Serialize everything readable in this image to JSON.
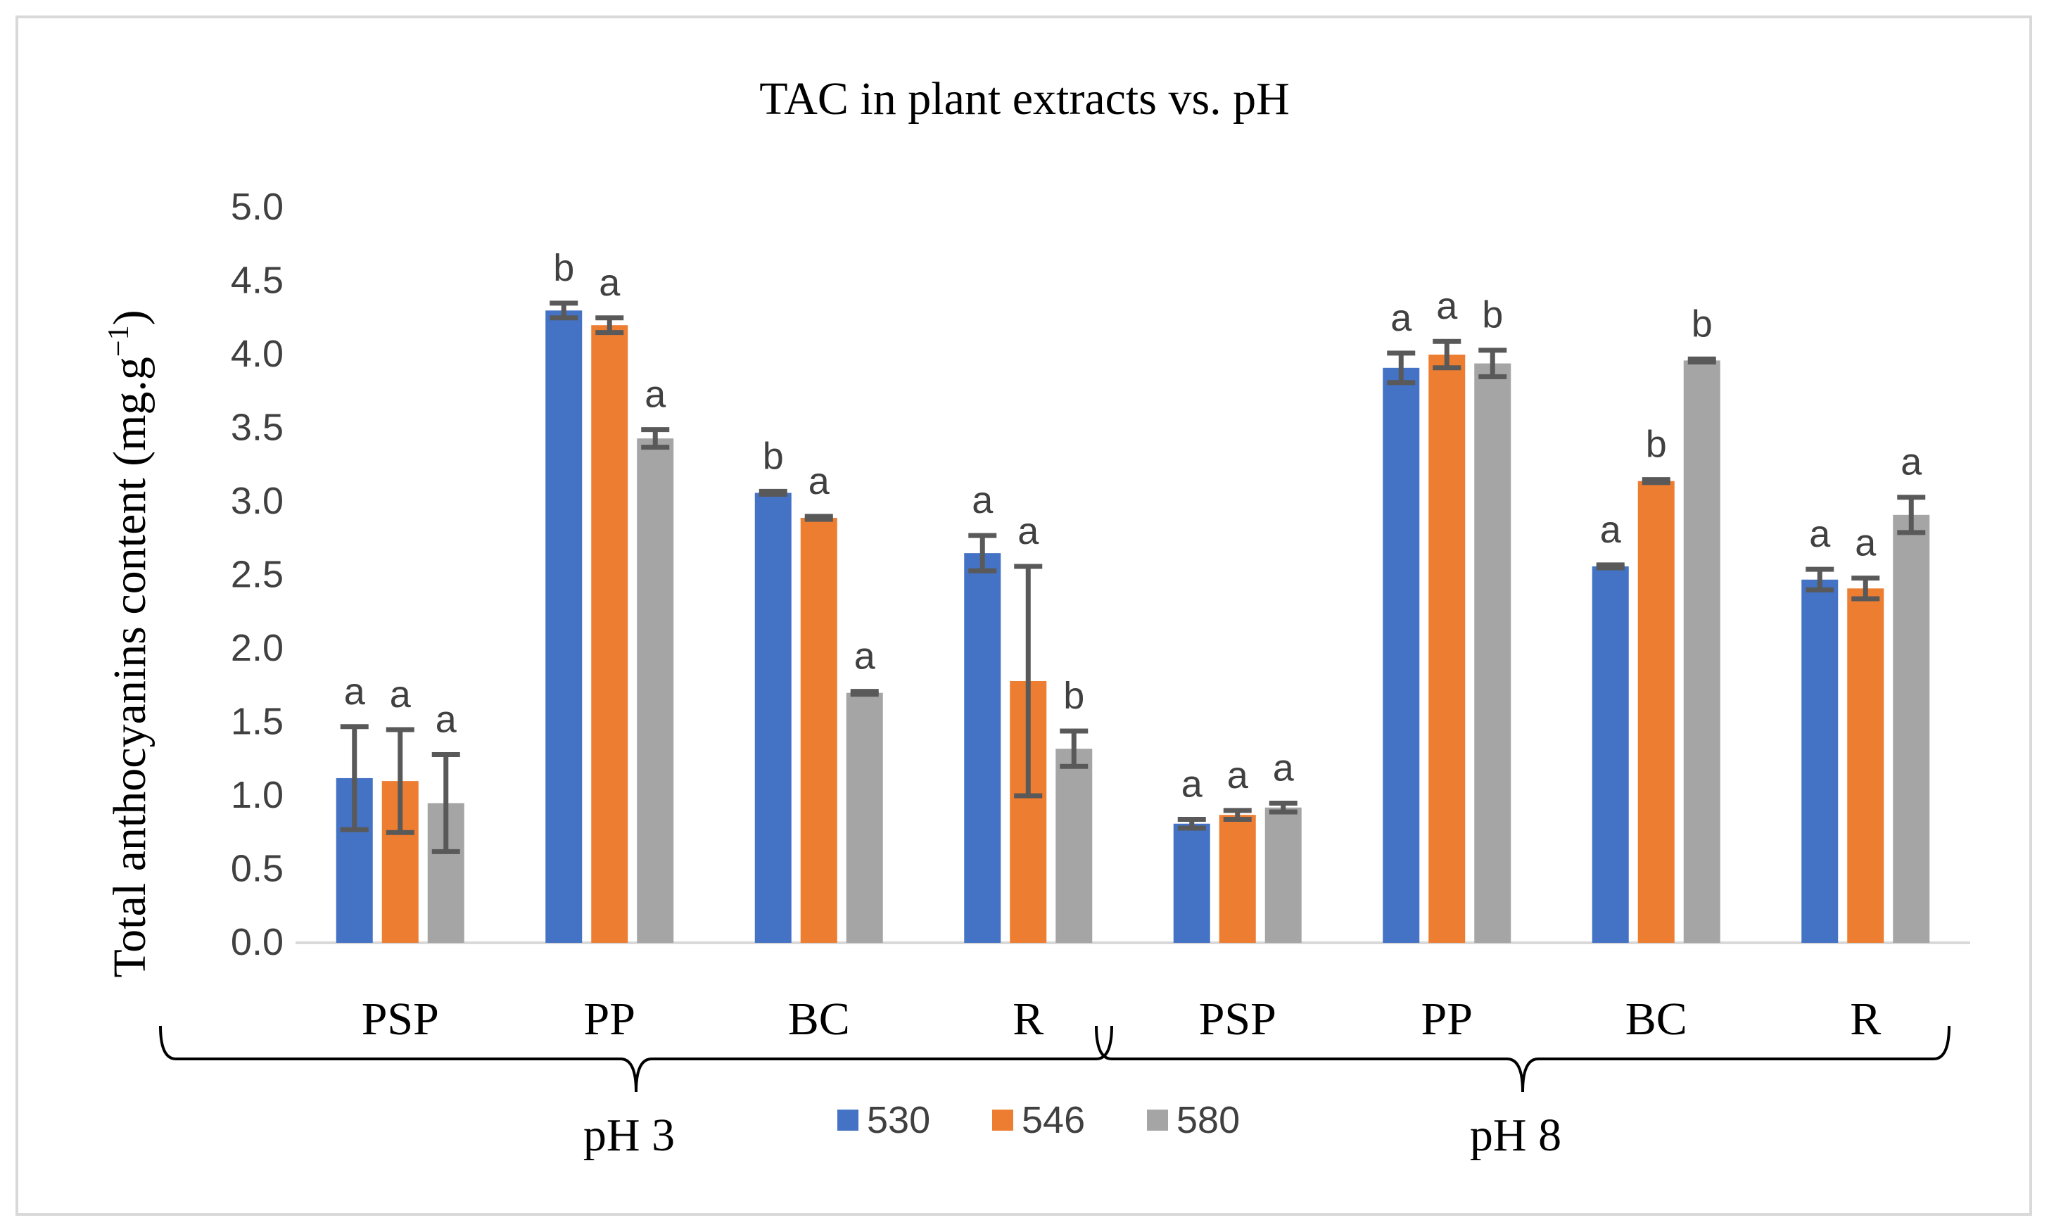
{
  "chart_data": {
    "type": "bar",
    "title": "TAC in plant extracts vs. pH",
    "ylabel": "Total anthocyanins content (mg.g",
    "ylabel_sup": "−1",
    "ylabel_close": ")",
    "ylim": [
      0,
      5
    ],
    "yticks": [
      "0.0",
      "0.5",
      "1.0",
      "1.5",
      "2.0",
      "2.5",
      "3.0",
      "3.5",
      "4.0",
      "4.5",
      "5.0"
    ],
    "categories": [
      "PSP",
      "PP",
      "BC",
      "R",
      "PSP",
      "PP",
      "BC",
      "R"
    ],
    "groups": [
      {
        "label": "pH 3",
        "start": 0,
        "end": 3
      },
      {
        "label": "pH 8",
        "start": 4,
        "end": 7
      }
    ],
    "series": [
      {
        "name": "530",
        "color": "#4472c4",
        "values": [
          1.12,
          4.3,
          3.06,
          2.65,
          0.81,
          3.91,
          2.56,
          2.47
        ],
        "errors": [
          0.35,
          0.05,
          0.01,
          0.12,
          0.03,
          0.1,
          0.01,
          0.07
        ],
        "letters": [
          "a",
          "b",
          "b",
          "a",
          "a",
          "a",
          "a",
          "a"
        ]
      },
      {
        "name": "546",
        "color": "#ed7d31",
        "values": [
          1.1,
          4.2,
          2.89,
          1.78,
          0.87,
          4.0,
          3.14,
          2.41
        ],
        "errors": [
          0.35,
          0.05,
          0.01,
          0.78,
          0.03,
          0.09,
          0.01,
          0.07
        ],
        "letters": [
          "a",
          "a",
          "a",
          "a",
          "a",
          "a",
          "b",
          "a"
        ]
      },
      {
        "name": "580",
        "color": "#a5a5a5",
        "values": [
          0.95,
          3.43,
          1.7,
          1.32,
          0.92,
          3.94,
          3.96,
          2.91
        ],
        "errors": [
          0.33,
          0.06,
          0.01,
          0.12,
          0.03,
          0.09,
          0.01,
          0.12
        ],
        "letters": [
          "a",
          "a",
          "a",
          "b",
          "a",
          "b",
          "b",
          "a"
        ]
      }
    ],
    "legend": {
      "placement": "bottom",
      "entries": [
        "530",
        "546",
        "580"
      ]
    }
  }
}
